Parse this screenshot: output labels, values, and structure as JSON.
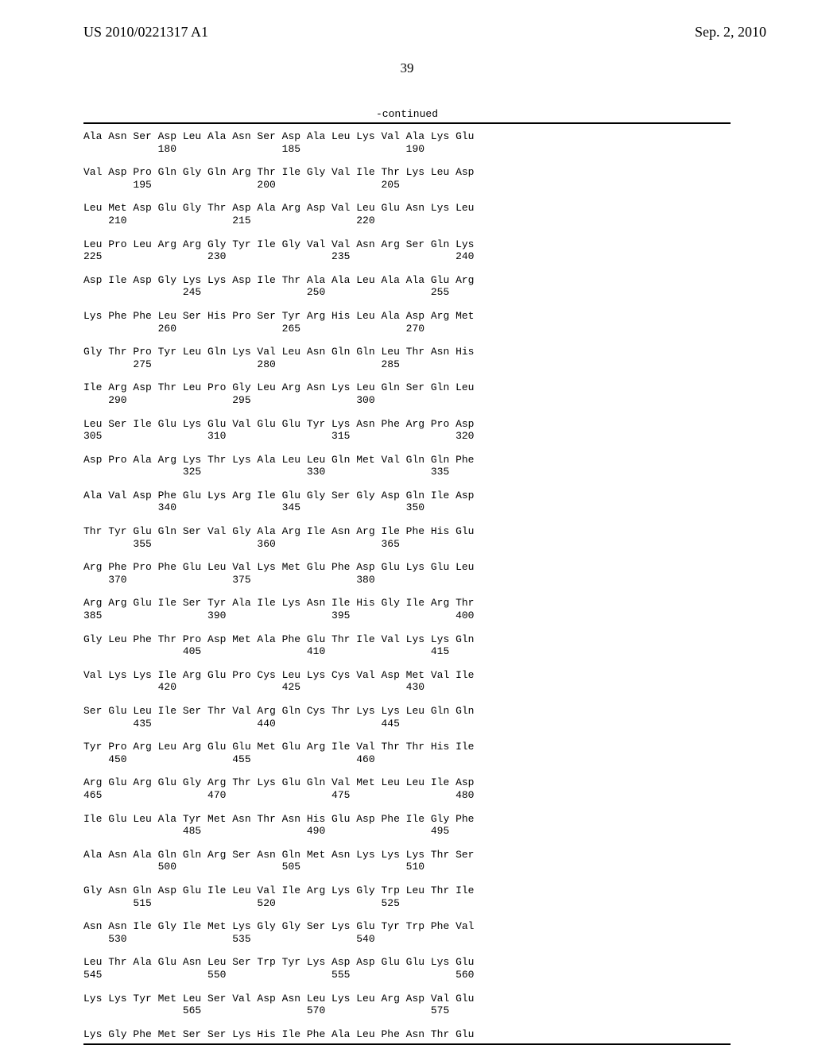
{
  "header": {
    "publication_number": "US 2010/0221317 A1",
    "publication_date": "Sep. 2, 2010"
  },
  "page_number": "39",
  "continued_label": "-continued",
  "sequence_blocks": [
    {
      "residues": "Ala Asn Ser Asp Leu Ala Asn Ser Asp Ala Leu Lys Val Ala Lys Glu",
      "numbers": "            180                 185                 190"
    },
    {
      "residues": "Val Asp Pro Gln Gly Gln Arg Thr Ile Gly Val Ile Thr Lys Leu Asp",
      "numbers": "        195                 200                 205"
    },
    {
      "residues": "Leu Met Asp Glu Gly Thr Asp Ala Arg Asp Val Leu Glu Asn Lys Leu",
      "numbers": "    210                 215                 220"
    },
    {
      "residues": "Leu Pro Leu Arg Arg Gly Tyr Ile Gly Val Val Asn Arg Ser Gln Lys",
      "numbers": "225                 230                 235                 240"
    },
    {
      "residues": "Asp Ile Asp Gly Lys Lys Asp Ile Thr Ala Ala Leu Ala Ala Glu Arg",
      "numbers": "                245                 250                 255"
    },
    {
      "residues": "Lys Phe Phe Leu Ser His Pro Ser Tyr Arg His Leu Ala Asp Arg Met",
      "numbers": "            260                 265                 270"
    },
    {
      "residues": "Gly Thr Pro Tyr Leu Gln Lys Val Leu Asn Gln Gln Leu Thr Asn His",
      "numbers": "        275                 280                 285"
    },
    {
      "residues": "Ile Arg Asp Thr Leu Pro Gly Leu Arg Asn Lys Leu Gln Ser Gln Leu",
      "numbers": "    290                 295                 300"
    },
    {
      "residues": "Leu Ser Ile Glu Lys Glu Val Glu Glu Tyr Lys Asn Phe Arg Pro Asp",
      "numbers": "305                 310                 315                 320"
    },
    {
      "residues": "Asp Pro Ala Arg Lys Thr Lys Ala Leu Leu Gln Met Val Gln Gln Phe",
      "numbers": "                325                 330                 335"
    },
    {
      "residues": "Ala Val Asp Phe Glu Lys Arg Ile Glu Gly Ser Gly Asp Gln Ile Asp",
      "numbers": "            340                 345                 350"
    },
    {
      "residues": "Thr Tyr Glu Gln Ser Val Gly Ala Arg Ile Asn Arg Ile Phe His Glu",
      "numbers": "        355                 360                 365"
    },
    {
      "residues": "Arg Phe Pro Phe Glu Leu Val Lys Met Glu Phe Asp Glu Lys Glu Leu",
      "numbers": "    370                 375                 380"
    },
    {
      "residues": "Arg Arg Glu Ile Ser Tyr Ala Ile Lys Asn Ile His Gly Ile Arg Thr",
      "numbers": "385                 390                 395                 400"
    },
    {
      "residues": "Gly Leu Phe Thr Pro Asp Met Ala Phe Glu Thr Ile Val Lys Lys Gln",
      "numbers": "                405                 410                 415"
    },
    {
      "residues": "Val Lys Lys Ile Arg Glu Pro Cys Leu Lys Cys Val Asp Met Val Ile",
      "numbers": "            420                 425                 430"
    },
    {
      "residues": "Ser Glu Leu Ile Ser Thr Val Arg Gln Cys Thr Lys Lys Leu Gln Gln",
      "numbers": "        435                 440                 445"
    },
    {
      "residues": "Tyr Pro Arg Leu Arg Glu Glu Met Glu Arg Ile Val Thr Thr His Ile",
      "numbers": "    450                 455                 460"
    },
    {
      "residues": "Arg Glu Arg Glu Gly Arg Thr Lys Glu Gln Val Met Leu Leu Ile Asp",
      "numbers": "465                 470                 475                 480"
    },
    {
      "residues": "Ile Glu Leu Ala Tyr Met Asn Thr Asn His Glu Asp Phe Ile Gly Phe",
      "numbers": "                485                 490                 495"
    },
    {
      "residues": "Ala Asn Ala Gln Gln Arg Ser Asn Gln Met Asn Lys Lys Lys Thr Ser",
      "numbers": "            500                 505                 510"
    },
    {
      "residues": "Gly Asn Gln Asp Glu Ile Leu Val Ile Arg Lys Gly Trp Leu Thr Ile",
      "numbers": "        515                 520                 525"
    },
    {
      "residues": "Asn Asn Ile Gly Ile Met Lys Gly Gly Ser Lys Glu Tyr Trp Phe Val",
      "numbers": "    530                 535                 540"
    },
    {
      "residues": "Leu Thr Ala Glu Asn Leu Ser Trp Tyr Lys Asp Asp Glu Glu Lys Glu",
      "numbers": "545                 550                 555                 560"
    },
    {
      "residues": "Lys Lys Tyr Met Leu Ser Val Asp Asn Leu Lys Leu Arg Asp Val Glu",
      "numbers": "                565                 570                 575"
    },
    {
      "residues": "Lys Gly Phe Met Ser Ser Lys His Ile Phe Ala Leu Phe Asn Thr Glu",
      "numbers": ""
    }
  ]
}
